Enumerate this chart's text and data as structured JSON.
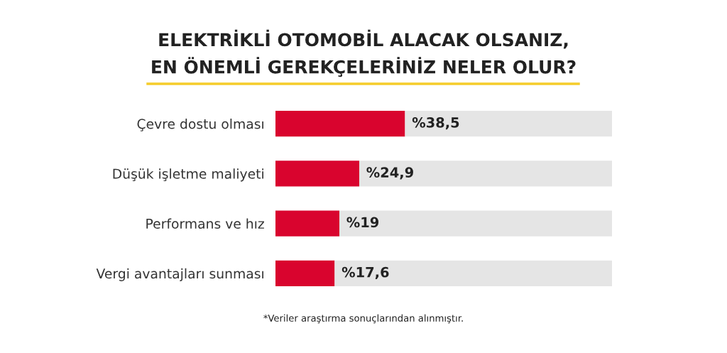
{
  "chart_data": {
    "type": "bar",
    "orientation": "horizontal",
    "stacked": true,
    "title": "ELEKTRİKLİ OTOMOBİL ALACAK OLSANIZ,\nEN ÖNEMLİ GEREKÇELERİNİZ NELER OLUR?",
    "categories": [
      "Çevre dostu olması",
      "Düşük işletme maliyeti",
      "Performans ve hız",
      "Vergi avantajları sunması"
    ],
    "series": [
      {
        "color": "#d9042e",
        "values": [
          38.5,
          24.9,
          19,
          17.6
        ],
        "value_labels": [
          "%38,5",
          "%24,9",
          "%19",
          "%17,6"
        ]
      },
      {
        "color": "#e5e5e5",
        "values": [
          61.5,
          75.1,
          81,
          82.4
        ]
      }
    ],
    "xlim": [
      0,
      100
    ],
    "tick_labels": "y",
    "annotations": [
      "*Veriler araştırma sonuçlarından alınmıştır."
    ]
  }
}
